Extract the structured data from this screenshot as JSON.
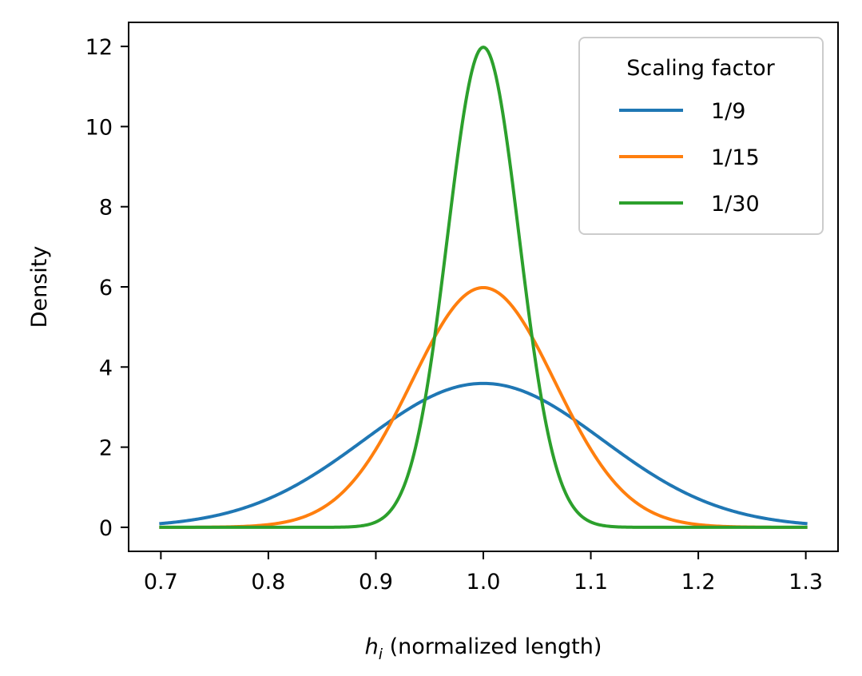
{
  "chart_data": {
    "type": "line",
    "title": "",
    "xlabel_symbol": "h",
    "xlabel_subscript": "i",
    "xlabel_rest": " (normalized length)",
    "ylabel": "Density",
    "xlim": [
      0.67,
      1.33
    ],
    "ylim": [
      -0.6,
      12.6
    ],
    "xticks": [
      0.7,
      0.8,
      0.9,
      1.0,
      1.1,
      1.2,
      1.3
    ],
    "xtick_labels": [
      "0.7",
      "0.8",
      "0.9",
      "1.0",
      "1.1",
      "1.2",
      "1.3"
    ],
    "yticks": [
      0,
      2,
      4,
      6,
      8,
      10,
      12
    ],
    "ytick_labels": [
      "0",
      "2",
      "4",
      "6",
      "8",
      "10",
      "12"
    ],
    "x_range": [
      0.7,
      1.3
    ],
    "distribution": "normal",
    "mean": 1.0,
    "legend": {
      "title": "Scaling factor",
      "position": "upper right"
    },
    "series": [
      {
        "name": "1/9",
        "color": "#1f77b4",
        "std": 0.1111
      },
      {
        "name": "1/15",
        "color": "#ff7f0e",
        "std": 0.0667
      },
      {
        "name": "1/30",
        "color": "#2ca02c",
        "std": 0.0333
      }
    ],
    "grid": false
  }
}
